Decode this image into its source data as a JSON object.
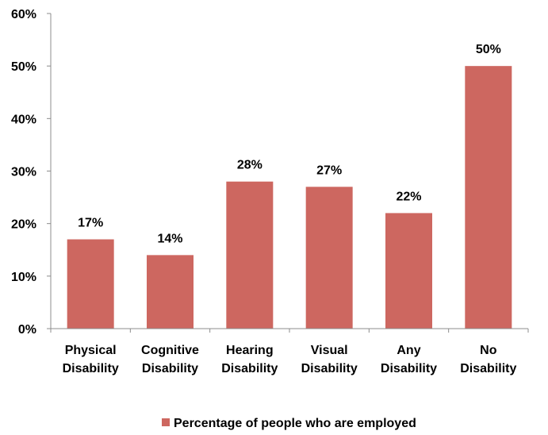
{
  "chart_data": {
    "type": "bar",
    "categories": [
      [
        "Physical",
        "Disability"
      ],
      [
        "Cognitive",
        "Disability"
      ],
      [
        "Hearing",
        "Disability"
      ],
      [
        "Visual",
        "Disability"
      ],
      [
        "Any",
        "Disability"
      ],
      [
        "No",
        "Disability"
      ]
    ],
    "series": [
      {
        "name": "Percentage of people who are employed",
        "values": [
          17,
          14,
          28,
          27,
          22,
          50
        ],
        "data_labels": [
          "17%",
          "14%",
          "28%",
          "27%",
          "22%",
          "50%"
        ],
        "color": "#CD6760"
      }
    ],
    "ylim": [
      0,
      60
    ],
    "yticks": [
      0,
      10,
      20,
      30,
      40,
      50,
      60
    ],
    "ytick_labels": [
      "0%",
      "10%",
      "20%",
      "30%",
      "40%",
      "50%",
      "60%"
    ],
    "grid": false,
    "legend_position": "bottom",
    "axis_color": "#8C8C8C"
  }
}
